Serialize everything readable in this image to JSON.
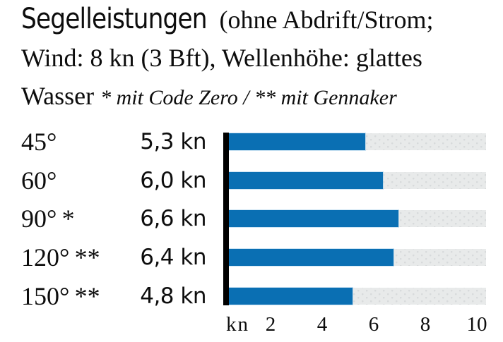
{
  "title": {
    "line1_main": "Segelleistungen",
    "line1_rest": " (ohne Abdrift/Strom;",
    "line2": "Wind: 8 kn (3 Bft), Wellenhöhe: glattes",
    "line3_start": "Wasser ",
    "line3_italic": "* mit Code Zero / ** mit Gennaker"
  },
  "chart_data": {
    "type": "bar",
    "orientation": "horizontal",
    "title": "Segelleistungen (ohne Abdrift/Strom; Wind: 8 kn (3 Bft), Wellenhöhe: glattes Wasser * mit Code Zero / ** mit Gennaker",
    "categories": [
      "45°",
      "60°",
      "90° *",
      "120° **",
      "150° **"
    ],
    "values": [
      5.3,
      6.0,
      6.6,
      6.4,
      4.8
    ],
    "value_labels": [
      "5,3 kn",
      "6,0 kn",
      "6,6 kn",
      "6,4 kn",
      "4,8 kn"
    ],
    "xlabel": "kn",
    "x_ticks": [
      2,
      4,
      6,
      8,
      10
    ],
    "xlim": [
      0,
      10
    ],
    "legend": "none",
    "grid": false,
    "colors": {
      "bar": "#0a6fb3",
      "track": "#e8eaea",
      "track_dot": "#d7dadb",
      "axis": "#000000",
      "text": "#0d0d0d"
    }
  }
}
